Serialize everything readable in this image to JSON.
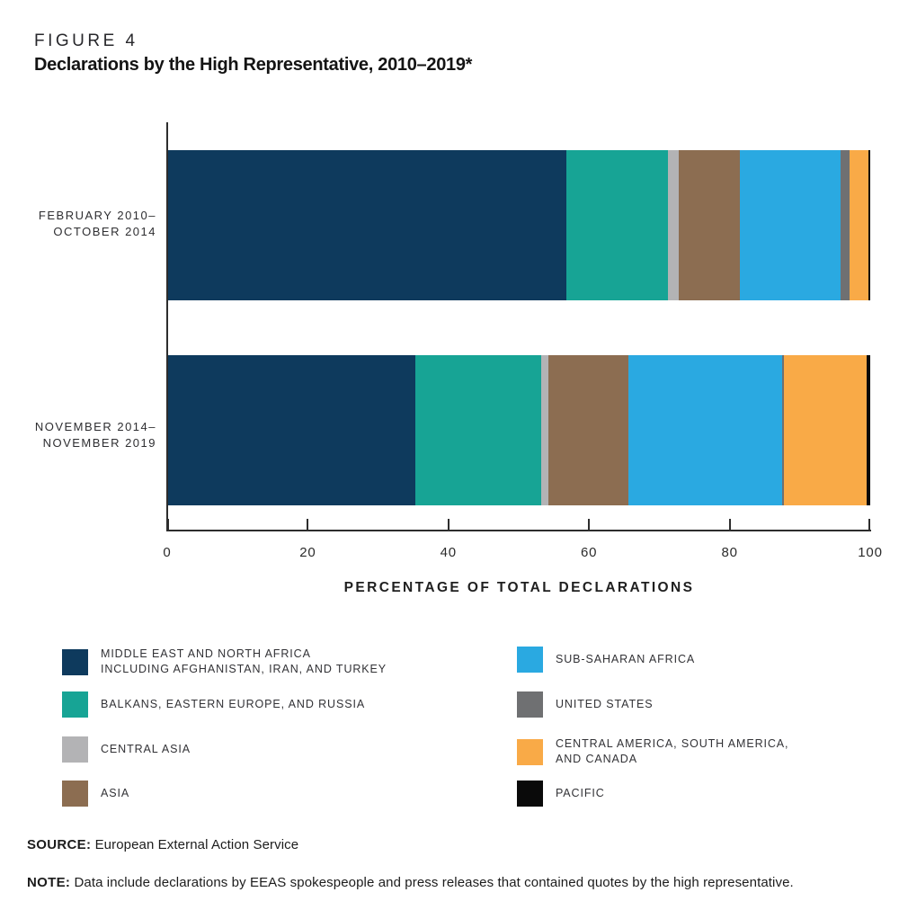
{
  "header": {
    "figure_label": "FIGURE 4",
    "title": "Declarations by the High Representative, 2010–2019*"
  },
  "chart_data": {
    "type": "bar",
    "orientation": "horizontal",
    "stacked": true,
    "title": "Declarations by the High Representative, 2010–2019*",
    "xlabel": "PERCENTAGE OF TOTAL DECLARATIONS",
    "xlim": [
      0,
      100
    ],
    "xticks": [
      0,
      20,
      40,
      60,
      80,
      100
    ],
    "grid": false,
    "legend_position": "bottom",
    "categories": [
      "FEBRUARY 2010–OCTOBER 2014",
      "NOVEMBER 2014–NOVEMBER 2019"
    ],
    "series": [
      {
        "name": "MIDDLE EAST AND NORTH AFRICA INCLUDING AFGHANISTAN, IRAN, AND TURKEY",
        "color": "#0e3a5d",
        "values": [
          56.7,
          35.2
        ]
      },
      {
        "name": "BALKANS, EASTERN EUROPE, AND RUSSIA",
        "color": "#17a495",
        "values": [
          14.5,
          18.0
        ]
      },
      {
        "name": "CENTRAL ASIA",
        "color": "#b3b3b5",
        "values": [
          1.5,
          1.0
        ]
      },
      {
        "name": "ASIA",
        "color": "#8c6d51",
        "values": [
          8.8,
          11.3
        ]
      },
      {
        "name": "SUB-SAHARAN AFRICA",
        "color": "#2aa9e1",
        "values": [
          14.3,
          22.0
        ]
      },
      {
        "name": "UNITED STATES",
        "color": "#6f7072",
        "values": [
          1.2,
          0.2
        ]
      },
      {
        "name": "CENTRAL AMERICA, SOUTH AMERICA, AND CANADA",
        "color": "#f9aa47",
        "values": [
          2.7,
          11.8
        ]
      },
      {
        "name": "PACIFIC",
        "color": "#0a0a0a",
        "values": [
          0.3,
          0.5
        ]
      }
    ]
  },
  "axis": {
    "tick_labels": [
      "0",
      "20",
      "40",
      "60",
      "80",
      "100"
    ],
    "xlabel": "PERCENTAGE OF TOTAL DECLARATIONS"
  },
  "row_labels": [
    {
      "line1": "FEBRUARY 2010–",
      "line2": "OCTOBER 2014"
    },
    {
      "line1": "NOVEMBER 2014–",
      "line2": "NOVEMBER 2019"
    }
  ],
  "legend": {
    "columns": [
      {
        "items": [
          {
            "swatch_color": "#0e3a5d",
            "icon": "navy-swatch",
            "lines": [
              "MIDDLE EAST AND NORTH AFRICA",
              "INCLUDING AFGHANISTAN, IRAN, AND TURKEY"
            ]
          },
          {
            "swatch_color": "#17a495",
            "icon": "teal-swatch",
            "lines": [
              "BALKANS, EASTERN EUROPE, AND RUSSIA"
            ]
          },
          {
            "swatch_color": "#b3b3b5",
            "icon": "light-gray-swatch",
            "lines": [
              "CENTRAL ASIA"
            ]
          },
          {
            "swatch_color": "#8c6d51",
            "icon": "brown-swatch",
            "lines": [
              "ASIA"
            ]
          }
        ]
      },
      {
        "items": [
          {
            "swatch_color": "#2aa9e1",
            "icon": "light-blue-swatch",
            "lines": [
              "SUB-SAHARAN AFRICA"
            ]
          },
          {
            "swatch_color": "#6f7072",
            "icon": "dark-gray-swatch",
            "lines": [
              "UNITED STATES"
            ]
          },
          {
            "swatch_color": "#f9aa47",
            "icon": "orange-swatch",
            "lines": [
              "CENTRAL AMERICA, SOUTH AMERICA,",
              "AND CANADA"
            ]
          },
          {
            "swatch_color": "#0a0a0a",
            "icon": "black-swatch",
            "lines": [
              "PACIFIC"
            ]
          }
        ]
      }
    ]
  },
  "footer": {
    "source_label": "SOURCE:",
    "source_text": "European External Action Service",
    "note_label": "NOTE:",
    "note_text": "Data include declarations by EEAS spokespeople and press releases that contained quotes by the high representative."
  }
}
